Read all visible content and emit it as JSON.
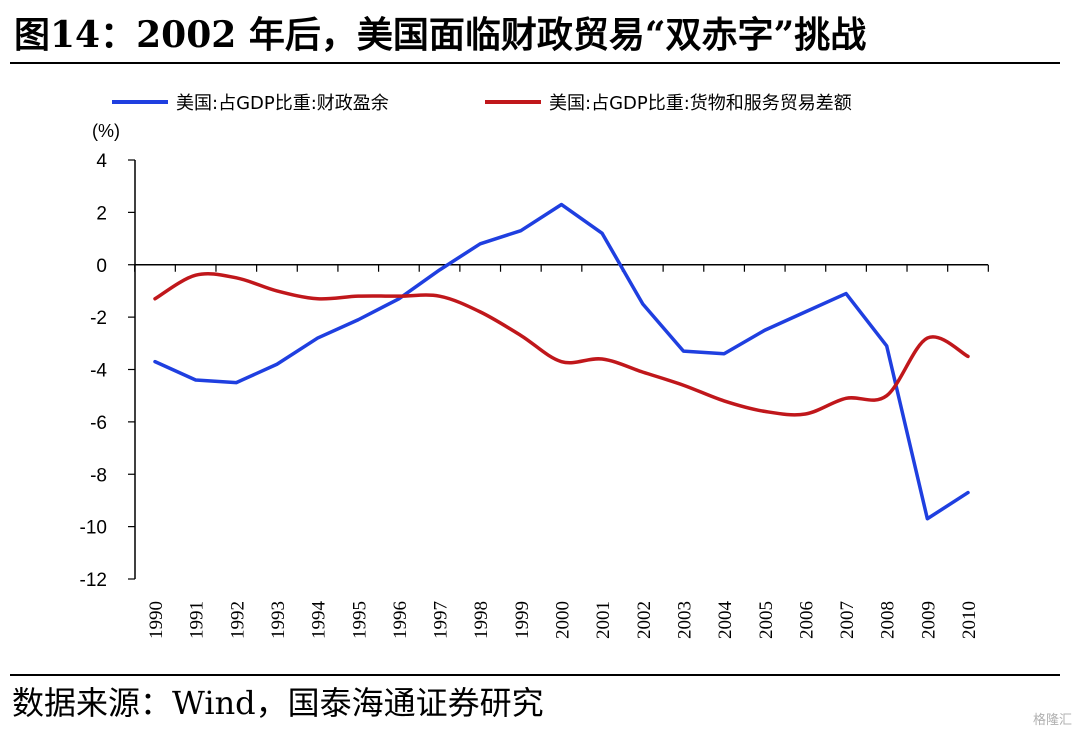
{
  "title": "图14：2002 年后，美国面临财政贸易“双赤字”挑战",
  "source": "数据来源：Wind，国泰海通证券研究",
  "watermark": "格隆汇",
  "chart_data": {
    "type": "line",
    "ylabel": "(%)",
    "ylim": [
      -12,
      4
    ],
    "yticks": [
      4,
      2,
      0,
      -2,
      -4,
      -6,
      -8,
      -10,
      -12
    ],
    "grid": false,
    "legend_position": "top",
    "categories": [
      "1990",
      "1991",
      "1992",
      "1993",
      "1994",
      "1995",
      "1996",
      "1997",
      "1998",
      "1999",
      "2000",
      "2001",
      "2002",
      "2003",
      "2004",
      "2005",
      "2006",
      "2007",
      "2008",
      "2009",
      "2010"
    ],
    "series": [
      {
        "name": "美国:占GDP比重:财政盈余",
        "color": "#1f3fe0",
        "values": [
          -3.7,
          -4.4,
          -4.5,
          -3.8,
          -2.8,
          -2.1,
          -1.3,
          -0.2,
          0.8,
          1.3,
          2.3,
          1.2,
          -1.5,
          -3.3,
          -3.4,
          -2.5,
          -1.8,
          -1.1,
          -3.1,
          -9.7,
          -8.7
        ]
      },
      {
        "name": "美国:占GDP比重:货物和服务贸易差额",
        "color": "#c0171b",
        "values": [
          -1.3,
          -0.4,
          -0.5,
          -1.0,
          -1.3,
          -1.2,
          -1.2,
          -1.2,
          -1.8,
          -2.7,
          -3.7,
          -3.6,
          -4.1,
          -4.6,
          -5.2,
          -5.6,
          -5.7,
          -5.1,
          -5.0,
          -2.8,
          -3.5
        ]
      }
    ]
  }
}
